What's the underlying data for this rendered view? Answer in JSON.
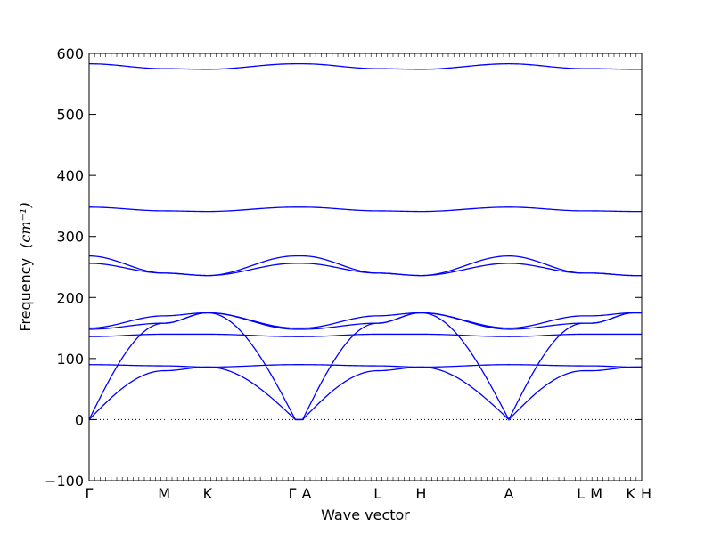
{
  "chart_data": {
    "type": "line",
    "title": "",
    "xlabel": "Wave vector",
    "ylabel": "Frequency",
    "ylabel_unit": "(cm⁻¹)",
    "ylim": [
      -100,
      600
    ],
    "yticks": [
      -100,
      0,
      100,
      200,
      300,
      400,
      500,
      600
    ],
    "grid": false,
    "legend": "none",
    "line_color": "#0000ff",
    "zero_line_color": "#000000",
    "path": [
      {
        "label": "Γ",
        "x": 0.0
      },
      {
        "label": "M",
        "x": 1.35
      },
      {
        "label": "K",
        "x": 2.13
      },
      {
        "label": "Γ",
        "x": 3.71
      },
      {
        "label": "A",
        "x": 3.84
      },
      {
        "label": "L",
        "x": 5.19
      },
      {
        "label": "H",
        "x": 5.97
      },
      {
        "label": "A",
        "x": 7.55
      },
      {
        "label": "L",
        "x": 8.9
      },
      {
        "label": "M",
        "x": 9.03
      },
      {
        "label": "K",
        "x": 9.81
      },
      {
        "label": "H",
        "x": 9.94
      }
    ],
    "xlim": [
      0,
      9.94
    ],
    "segment_values": {
      "Γ-M": [
        [
          0,
          80
        ],
        [
          0,
          158
        ],
        [
          90,
          88
        ],
        [
          136,
          140
        ],
        [
          148,
          158
        ],
        [
          150,
          170
        ],
        [
          256,
          240
        ],
        [
          268,
          240
        ],
        [
          348,
          342
        ],
        [
          583,
          575
        ]
      ],
      "M-K": [
        [
          80,
          86
        ],
        [
          158,
          175
        ],
        [
          88,
          86
        ],
        [
          140,
          140
        ],
        [
          158,
          175
        ],
        [
          170,
          175
        ],
        [
          240,
          236
        ],
        [
          240,
          236
        ],
        [
          342,
          341
        ],
        [
          575,
          574
        ]
      ],
      "K-Γ": [
        [
          86,
          0
        ],
        [
          175,
          0
        ],
        [
          86,
          90
        ],
        [
          140,
          136
        ],
        [
          175,
          148
        ],
        [
          175,
          150
        ],
        [
          236,
          256
        ],
        [
          236,
          268
        ],
        [
          341,
          348
        ],
        [
          574,
          583
        ]
      ],
      "Γ-A": [
        [
          0,
          0
        ],
        [
          0,
          0
        ],
        [
          90,
          90
        ],
        [
          136,
          136
        ],
        [
          148,
          148
        ],
        [
          150,
          150
        ],
        [
          256,
          256
        ],
        [
          268,
          268
        ],
        [
          348,
          348
        ],
        [
          583,
          583
        ]
      ],
      "A-L": [
        [
          0,
          80
        ],
        [
          0,
          158
        ],
        [
          90,
          88
        ],
        [
          136,
          140
        ],
        [
          148,
          158
        ],
        [
          150,
          170
        ],
        [
          256,
          240
        ],
        [
          268,
          240
        ],
        [
          348,
          342
        ],
        [
          583,
          575
        ]
      ],
      "L-H": [
        [
          80,
          86
        ],
        [
          158,
          175
        ],
        [
          88,
          86
        ],
        [
          140,
          140
        ],
        [
          158,
          175
        ],
        [
          170,
          175
        ],
        [
          240,
          236
        ],
        [
          240,
          236
        ],
        [
          342,
          341
        ],
        [
          575,
          574
        ]
      ],
      "H-A": [
        [
          86,
          0
        ],
        [
          175,
          0
        ],
        [
          86,
          90
        ],
        [
          140,
          136
        ],
        [
          175,
          148
        ],
        [
          175,
          150
        ],
        [
          236,
          256
        ],
        [
          236,
          268
        ],
        [
          341,
          348
        ],
        [
          574,
          583
        ]
      ],
      "A-L2": [
        [
          0,
          80
        ],
        [
          0,
          158
        ],
        [
          90,
          88
        ],
        [
          136,
          140
        ],
        [
          148,
          158
        ],
        [
          150,
          170
        ],
        [
          256,
          240
        ],
        [
          268,
          240
        ],
        [
          348,
          342
        ],
        [
          583,
          575
        ]
      ],
      "L-M": [
        [
          80,
          80
        ],
        [
          158,
          158
        ],
        [
          88,
          88
        ],
        [
          140,
          140
        ],
        [
          158,
          158
        ],
        [
          170,
          170
        ],
        [
          240,
          240
        ],
        [
          240,
          240
        ],
        [
          342,
          342
        ],
        [
          575,
          575
        ]
      ],
      "M-K2": [
        [
          80,
          86
        ],
        [
          158,
          175
        ],
        [
          88,
          86
        ],
        [
          140,
          140
        ],
        [
          158,
          175
        ],
        [
          170,
          175
        ],
        [
          240,
          236
        ],
        [
          240,
          236
        ],
        [
          342,
          341
        ],
        [
          575,
          574
        ]
      ],
      "K-H": [
        [
          86,
          86
        ],
        [
          175,
          175
        ],
        [
          86,
          86
        ],
        [
          140,
          140
        ],
        [
          175,
          175
        ],
        [
          175,
          175
        ],
        [
          236,
          236
        ],
        [
          236,
          236
        ],
        [
          341,
          341
        ],
        [
          574,
          574
        ]
      ]
    }
  }
}
